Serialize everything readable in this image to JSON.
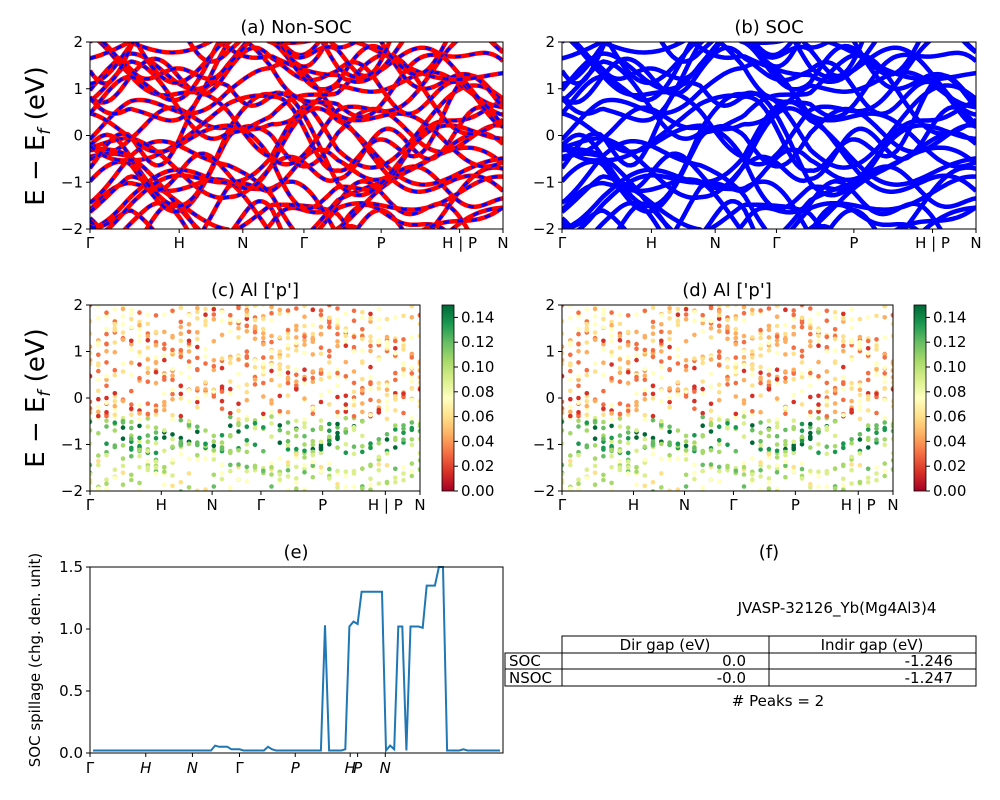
{
  "chart_data": [
    {
      "panel": "a",
      "type": "line",
      "title": "(a) Non-SOC",
      "ylabel": "E − E_f (eV)",
      "ylim": [
        -2,
        2
      ],
      "yticks": [
        "−2",
        "−1",
        "0",
        "1",
        "2"
      ],
      "kpath": [
        "Γ",
        "H",
        "N",
        "Γ",
        "P",
        "H | P",
        "N"
      ],
      "series_colors": [
        "#ff0000",
        "#0000ff"
      ],
      "style": "red bands overlaid with dashed blue (spin up / spin down)"
    },
    {
      "panel": "b",
      "type": "line",
      "title": "(b) SOC",
      "ylim": [
        -2,
        2
      ],
      "yticks": [
        "−2",
        "−1",
        "0",
        "1",
        "2"
      ],
      "kpath": [
        "Γ",
        "H",
        "N",
        "Γ",
        "P",
        "H | P",
        "N"
      ],
      "series_colors": [
        "#0000ff"
      ]
    },
    {
      "panel": "c",
      "type": "scatter",
      "title": "(c)  Al ['p']",
      "ylabel": "E − E_f (eV)",
      "ylim": [
        -2,
        2
      ],
      "yticks": [
        "−2",
        "−1",
        "0",
        "1",
        "2"
      ],
      "kpath": [
        "Γ",
        "H",
        "N",
        "Γ",
        "P",
        "H | P",
        "N"
      ],
      "colormap": "RdYlGn",
      "colorbar_range": [
        0.0,
        0.15
      ],
      "colorbar_ticks": [
        "0.00",
        "0.02",
        "0.04",
        "0.06",
        "0.08",
        "0.10",
        "0.12",
        "0.14"
      ]
    },
    {
      "panel": "d",
      "type": "scatter",
      "title": "(d) Al ['p']",
      "ylim": [
        -2,
        2
      ],
      "yticks": [
        "−2",
        "−1",
        "0",
        "1",
        "2"
      ],
      "kpath": [
        "Γ",
        "H",
        "N",
        "Γ",
        "P",
        "H | P",
        "N"
      ],
      "colormap": "RdYlGn",
      "colorbar_range": [
        0.0,
        0.15
      ],
      "colorbar_ticks": [
        "0.00",
        "0.02",
        "0.04",
        "0.06",
        "0.08",
        "0.10",
        "0.12",
        "0.14"
      ]
    },
    {
      "panel": "e",
      "type": "line",
      "title": "(e)",
      "ylabel": "SOC spillage (chg. den. unit)",
      "ylim": [
        0,
        1.5
      ],
      "yticks": [
        "0.0",
        "0.5",
        "1.0",
        "1.5"
      ],
      "xticks": [
        "Γ",
        "H",
        "N",
        "Γ",
        "P",
        "H",
        "P",
        "N"
      ],
      "color": "#1f77b4",
      "x": [
        0,
        1,
        2,
        3,
        4,
        5,
        6,
        7,
        8,
        9,
        10,
        11,
        12,
        13,
        14,
        15,
        16,
        17,
        18,
        19,
        20,
        21,
        22,
        23,
        24,
        25,
        26,
        27,
        28,
        29,
        30,
        31,
        32,
        33,
        34,
        35,
        36,
        37,
        38,
        39,
        40,
        41,
        42,
        43,
        44,
        45,
        46,
        47,
        48,
        49,
        50,
        51,
        52,
        53,
        54,
        55,
        56,
        57,
        58,
        59,
        60,
        61,
        62,
        63,
        64,
        65,
        66,
        67,
        68,
        69,
        70,
        71,
        72,
        73,
        74,
        75,
        76,
        77,
        78,
        79,
        80,
        81,
        82,
        83,
        84,
        85,
        86,
        87,
        88,
        89,
        90,
        91,
        92,
        93,
        94,
        95,
        96,
        97,
        98,
        99,
        100
      ],
      "y": [
        0.02,
        0.02,
        0.02,
        0.02,
        0.02,
        0.02,
        0.02,
        0.02,
        0.02,
        0.02,
        0.02,
        0.02,
        0.02,
        0.02,
        0.02,
        0.02,
        0.02,
        0.02,
        0.02,
        0.02,
        0.02,
        0.02,
        0.02,
        0.02,
        0.02,
        0.02,
        0.02,
        0.02,
        0.02,
        0.02,
        0.06,
        0.05,
        0.05,
        0.05,
        0.03,
        0.03,
        0.03,
        0.02,
        0.02,
        0.02,
        0.02,
        0.02,
        0.02,
        0.05,
        0.03,
        0.02,
        0.02,
        0.02,
        0.02,
        0.02,
        0.02,
        0.02,
        0.02,
        0.02,
        0.02,
        0.02,
        0.02,
        1.03,
        0.02,
        0.02,
        0.02,
        0.02,
        0.03,
        1.02,
        1.06,
        1.04,
        1.3,
        1.3,
        1.3,
        1.3,
        1.3,
        1.3,
        0.02,
        0.06,
        0.03,
        1.02,
        1.02,
        0.02,
        1.02,
        1.02,
        1.02,
        1.01,
        1.35,
        1.35,
        1.35,
        1.52,
        1.52,
        0.02,
        0.02,
        0.02,
        0.02,
        0.03,
        0.02,
        0.02,
        0.02,
        0.02,
        0.02,
        0.02,
        0.02,
        0.02,
        0.02
      ]
    }
  ],
  "panel_f": {
    "title": "(f)",
    "material": "JVASP-32126_Yb(Mg4Al3)4",
    "columns": [
      "Dir gap (eV)",
      "Indir gap (eV)"
    ],
    "rows": [
      {
        "label": "SOC",
        "dir": "0.0",
        "indir": "-1.246"
      },
      {
        "label": "NSOC",
        "dir": "-0.0",
        "indir": "-1.247"
      }
    ],
    "peaks": "# Peaks = 2"
  }
}
